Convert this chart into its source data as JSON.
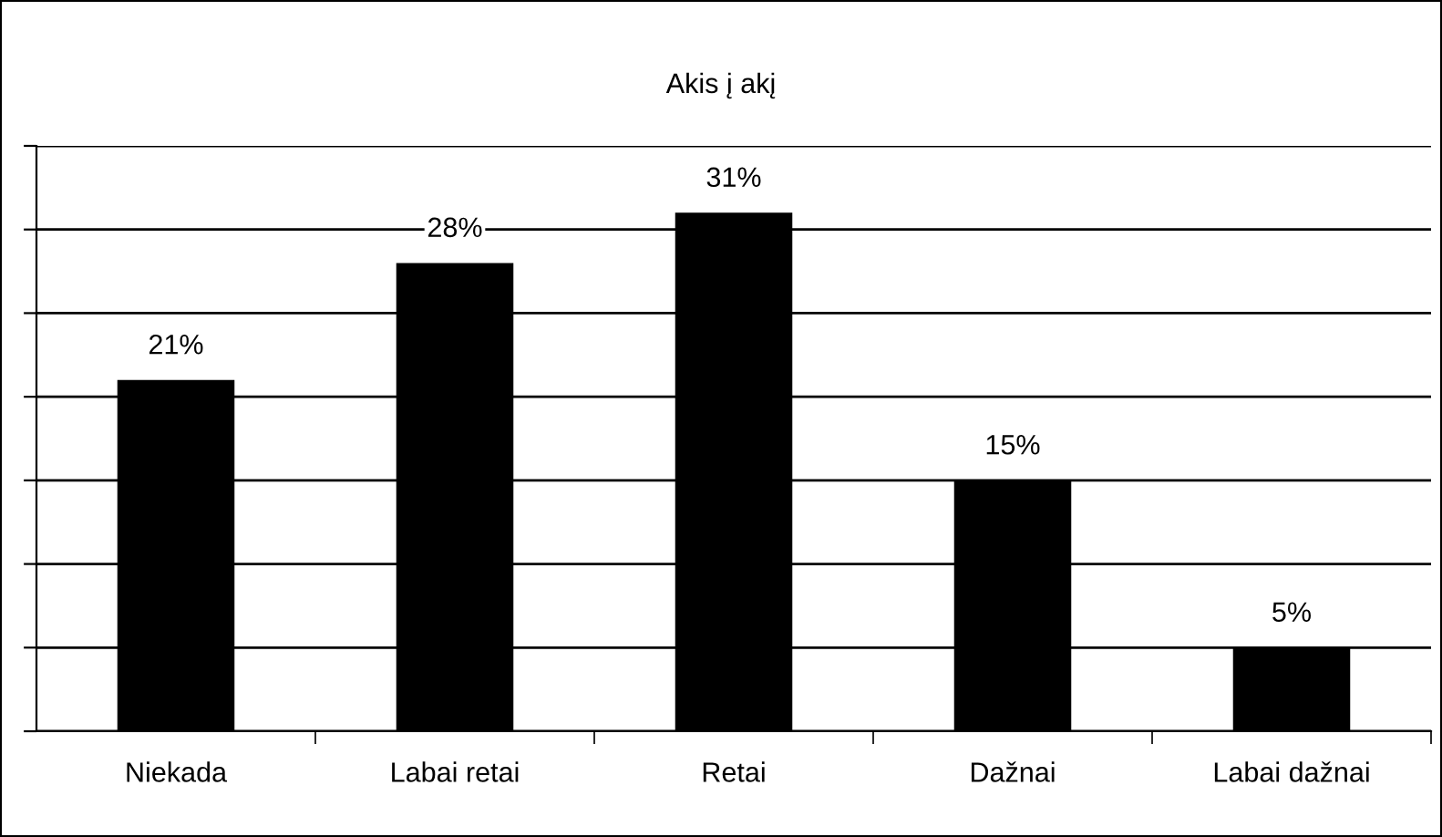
{
  "chart_data": {
    "type": "bar",
    "title": "Akis į akį",
    "categories": [
      "Niekada",
      "Labai retai",
      "Retai",
      "Dažnai",
      "Labai dažnai"
    ],
    "values": [
      21,
      28,
      31,
      15,
      5
    ],
    "color": "#000000",
    "value_labels": [
      "21%",
      "28%",
      "31%",
      "15%",
      "5%"
    ],
    "ylim": [
      0,
      35
    ],
    "yticks": [
      {
        "value": 0,
        "label": null
      },
      {
        "value": 5,
        "label": null
      },
      {
        "value": 10,
        "label": null
      },
      {
        "value": 15,
        "label": null
      },
      {
        "value": 20,
        "label": null
      },
      {
        "value": 25,
        "label": null
      },
      {
        "value": 30,
        "label": null
      },
      {
        "value": 35,
        "label": null
      }
    ],
    "tick_labels": "x",
    "grid": "y"
  }
}
